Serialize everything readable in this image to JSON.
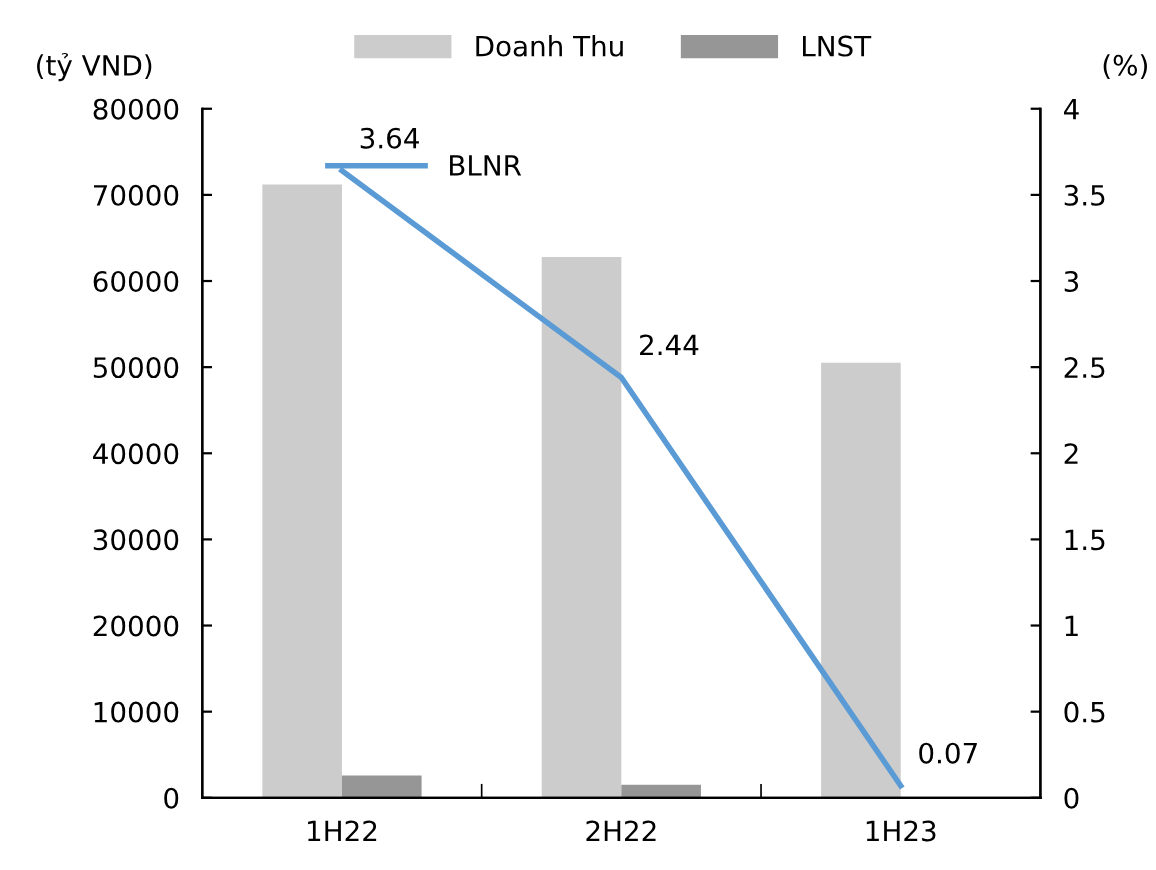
{
  "chart_data": {
    "type": "bar",
    "ylabel": "(tỷ VND)",
    "y2label": "(%)",
    "categories": [
      "1H22",
      "2H22",
      "1H23"
    ],
    "series": [
      {
        "name": "Doanh Thu",
        "color": "#cccccc",
        "values": [
          71200,
          62800,
          50500
        ]
      },
      {
        "name": "LNST",
        "color": "#969696",
        "values": [
          2600,
          1500,
          40
        ]
      },
      {
        "name": "BLNR",
        "type": "line",
        "axis": "y2",
        "color": "#5b9bd5",
        "values": [
          3.64,
          2.44,
          0.07
        ],
        "value_labels": [
          "3.64",
          "2.44",
          "0.07"
        ]
      }
    ],
    "ylim": [
      0,
      80000
    ],
    "yticks": [
      0,
      10000,
      20000,
      30000,
      40000,
      50000,
      60000,
      70000,
      80000
    ],
    "y2lim": [
      0,
      4
    ],
    "y2ticks": [
      0,
      0.5,
      1,
      1.5,
      2,
      2.5,
      3,
      3.5,
      4
    ],
    "grid": false,
    "legend": "top"
  }
}
